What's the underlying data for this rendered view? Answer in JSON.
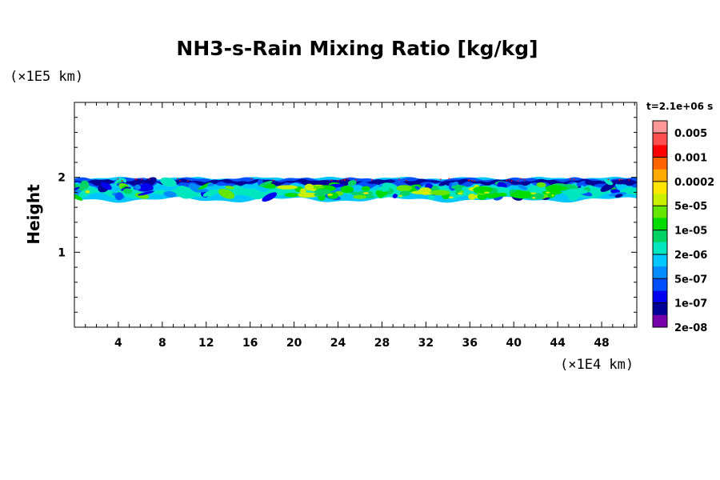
{
  "chart_data": {
    "type": "heatmap",
    "title": "NH3-s-Rain Mixing Ratio [kg/kg]",
    "ylabel": "Height",
    "xlabel": "",
    "x_unit_label": "(×1E4 km)",
    "y_unit_label": "(×1E5 km)",
    "time_label": "t=2.1e+06 s",
    "xlim": [
      0,
      51.2
    ],
    "ylim": [
      0,
      3
    ],
    "x_ticks": [
      4,
      8,
      12,
      16,
      20,
      24,
      28,
      32,
      36,
      40,
      44,
      48
    ],
    "y_ticks": [
      1,
      2
    ],
    "grid": false,
    "layer_band": {
      "y_bottom": 1.69,
      "y_top": 2.0
    },
    "colorbar": {
      "levels": [
        "0.005",
        "0.001",
        "0.0002",
        "5e-05",
        "1e-05",
        "2e-06",
        "5e-07",
        "1e-07",
        "2e-08"
      ],
      "colors": [
        "#ff9999",
        "#ff5050",
        "#ff0000",
        "#ff6400",
        "#ffaa00",
        "#ffe600",
        "#c8f000",
        "#64e600",
        "#00dc00",
        "#00d264",
        "#00e6be",
        "#00c8ff",
        "#008cff",
        "#0050ff",
        "#0000f0",
        "#000096",
        "#7800aa"
      ]
    }
  }
}
